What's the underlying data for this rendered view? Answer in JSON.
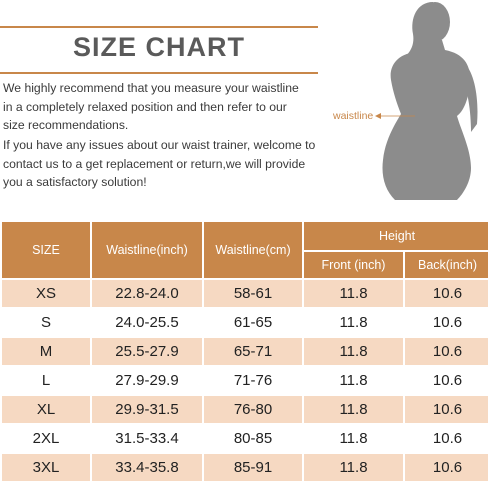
{
  "header": {
    "title": "SIZE CHART"
  },
  "paragraphs": [
    [
      "We highly recommend that you measure your waistline",
      "in a completely relaxed position and then refer to our",
      "size recommendations."
    ],
    [
      "If you have any issues about our waist trainer, welcome to",
      "contact us to a get replacement or return,we will provide",
      "you a satisfactory solution!"
    ]
  ],
  "figure": {
    "waist_label": "waistline",
    "silhouette_color": "#8c8c8c",
    "marker_color": "#c8874a"
  },
  "colors": {
    "accent": "#c8874a",
    "row_shade": "#f6d9c2"
  },
  "table": {
    "headers": {
      "size": "SIZE",
      "waist_inch": "Waistline(inch)",
      "waist_cm": "Waistline(cm)",
      "height": "Height",
      "front": "Front (inch)",
      "back": "Back(inch)"
    },
    "rows": [
      {
        "size": "XS",
        "waist_inch": "22.8-24.0",
        "waist_cm": "58-61",
        "front": "11.8",
        "back": "10.6"
      },
      {
        "size": "S",
        "waist_inch": "24.0-25.5",
        "waist_cm": "61-65",
        "front": "11.8",
        "back": "10.6"
      },
      {
        "size": "M",
        "waist_inch": "25.5-27.9",
        "waist_cm": "65-71",
        "front": "11.8",
        "back": "10.6"
      },
      {
        "size": "L",
        "waist_inch": "27.9-29.9",
        "waist_cm": "71-76",
        "front": "11.8",
        "back": "10.6"
      },
      {
        "size": "XL",
        "waist_inch": "29.9-31.5",
        "waist_cm": "76-80",
        "front": "11.8",
        "back": "10.6"
      },
      {
        "size": "2XL",
        "waist_inch": "31.5-33.4",
        "waist_cm": "80-85",
        "front": "11.8",
        "back": "10.6"
      },
      {
        "size": "3XL",
        "waist_inch": "33.4-35.8",
        "waist_cm": "85-91",
        "front": "11.8",
        "back": "10.6"
      }
    ]
  }
}
